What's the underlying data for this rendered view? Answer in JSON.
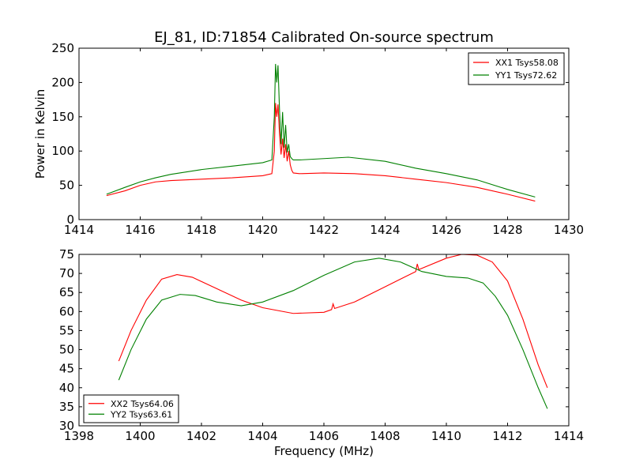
{
  "chart_data": [
    {
      "type": "line",
      "title": "EJ_81, ID:71854 Calibrated On-source spectrum",
      "xlabel": "",
      "ylabel": "Power in Kelvin",
      "xlim": [
        1414,
        1430
      ],
      "ylim": [
        0,
        250
      ],
      "xticks": [
        "1414",
        "1416",
        "1418",
        "1420",
        "1422",
        "1424",
        "1426",
        "1428",
        "1430"
      ],
      "yticks": [
        "0",
        "50",
        "100",
        "150",
        "200",
        "250"
      ],
      "legend_position": "top-right",
      "series": [
        {
          "name": "XX1 Tsys58.08",
          "color": "#ff0000",
          "x": [
            1414.9,
            1415.5,
            1416,
            1416.5,
            1417,
            1418,
            1419,
            1420,
            1420.3,
            1420.38,
            1420.42,
            1420.46,
            1420.5,
            1420.55,
            1420.6,
            1420.65,
            1420.7,
            1420.75,
            1420.8,
            1420.85,
            1420.9,
            1420.95,
            1421,
            1421.2,
            1422,
            1423,
            1424,
            1425,
            1426,
            1427,
            1428,
            1428.9
          ],
          "y": [
            35,
            42,
            50,
            55,
            57,
            59,
            61,
            64,
            67,
            100,
            170,
            150,
            168,
            125,
            95,
            118,
            90,
            110,
            85,
            100,
            80,
            72,
            68,
            67,
            68,
            67,
            64,
            59,
            54,
            47,
            37,
            27
          ]
        },
        {
          "name": "YY1 Tsys72.62",
          "color": "#008000",
          "x": [
            1414.9,
            1415.5,
            1416,
            1416.5,
            1417,
            1418,
            1419,
            1420,
            1420.3,
            1420.38,
            1420.42,
            1420.46,
            1420.5,
            1420.55,
            1420.6,
            1420.65,
            1420.7,
            1420.75,
            1420.8,
            1420.85,
            1420.9,
            1420.95,
            1421,
            1421.2,
            1422,
            1422.8,
            1424,
            1425,
            1426,
            1427,
            1428,
            1428.9
          ],
          "y": [
            37,
            47,
            55,
            61,
            66,
            73,
            78,
            83,
            87,
            150,
            227,
            200,
            225,
            160,
            110,
            157,
            105,
            138,
            98,
            110,
            92,
            89,
            87,
            87,
            89,
            91,
            85,
            75,
            67,
            58,
            44,
            33
          ]
        }
      ]
    },
    {
      "type": "line",
      "title": "",
      "xlabel": "Frequency (MHz)",
      "ylabel": "",
      "xlim": [
        1398,
        1414
      ],
      "ylim": [
        30,
        75
      ],
      "xticks": [
        "1398",
        "1400",
        "1402",
        "1404",
        "1406",
        "1408",
        "1410",
        "1412",
        "1414"
      ],
      "yticks": [
        "30",
        "35",
        "40",
        "45",
        "50",
        "55",
        "60",
        "65",
        "70",
        "75"
      ],
      "legend_position": "bottom-left",
      "series": [
        {
          "name": "XX2 Tsys64.06",
          "color": "#ff0000",
          "x": [
            1399.3,
            1399.7,
            1400.2,
            1400.7,
            1401.2,
            1401.7,
            1402.5,
            1403.3,
            1404,
            1405,
            1406,
            1406.25,
            1406.3,
            1406.35,
            1407,
            1408,
            1409,
            1409.05,
            1409.1,
            1410,
            1410.5,
            1411,
            1411.5,
            1412,
            1412.5,
            1413,
            1413.3
          ],
          "y": [
            47,
            55,
            63,
            68.5,
            69.7,
            69,
            66,
            63,
            61,
            59.5,
            59.8,
            60.5,
            62,
            60.8,
            62.5,
            66.5,
            70.5,
            72.5,
            71,
            74,
            75,
            74.8,
            73,
            68,
            58,
            46,
            40
          ]
        },
        {
          "name": "YY2 Tsys63.61",
          "color": "#008000",
          "x": [
            1399.3,
            1399.7,
            1400.2,
            1400.7,
            1401.3,
            1401.8,
            1402.5,
            1403.3,
            1404,
            1405,
            1406,
            1407,
            1407.8,
            1408.5,
            1409.2,
            1410,
            1410.7,
            1411.2,
            1411.6,
            1412,
            1412.5,
            1413,
            1413.3
          ],
          "y": [
            42,
            50,
            58,
            63,
            64.5,
            64.2,
            62.5,
            61.5,
            62.5,
            65.5,
            69.5,
            73,
            74,
            73,
            70.5,
            69.2,
            68.8,
            67.5,
            64,
            59,
            50,
            40,
            34.5
          ]
        }
      ]
    }
  ]
}
